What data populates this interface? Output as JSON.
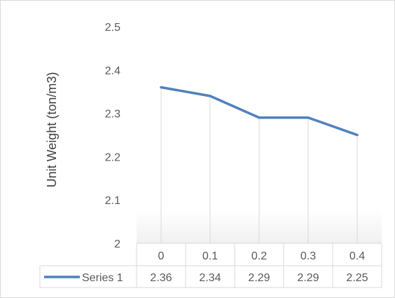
{
  "chart_data": {
    "type": "line",
    "title": "",
    "xlabel": "",
    "ylabel": "Unit Weight (ton/m3)",
    "ylim": [
      2,
      2.5
    ],
    "yticks": [
      "2",
      "2.1",
      "2.2",
      "2.3",
      "2.4",
      "2.5"
    ],
    "categories": [
      "0",
      "0.1",
      "0.2",
      "0.3",
      "0.4"
    ],
    "series": [
      {
        "name": "Series 1",
        "values": [
          2.36,
          2.34,
          2.29,
          2.29,
          2.25
        ],
        "value_labels": [
          "2.36",
          "2.34",
          "2.29",
          "2.29",
          "2.25"
        ],
        "color": "#4f81bd"
      }
    ],
    "data_table": true,
    "drop_lines": true,
    "grid": false,
    "legend": "data-table"
  }
}
